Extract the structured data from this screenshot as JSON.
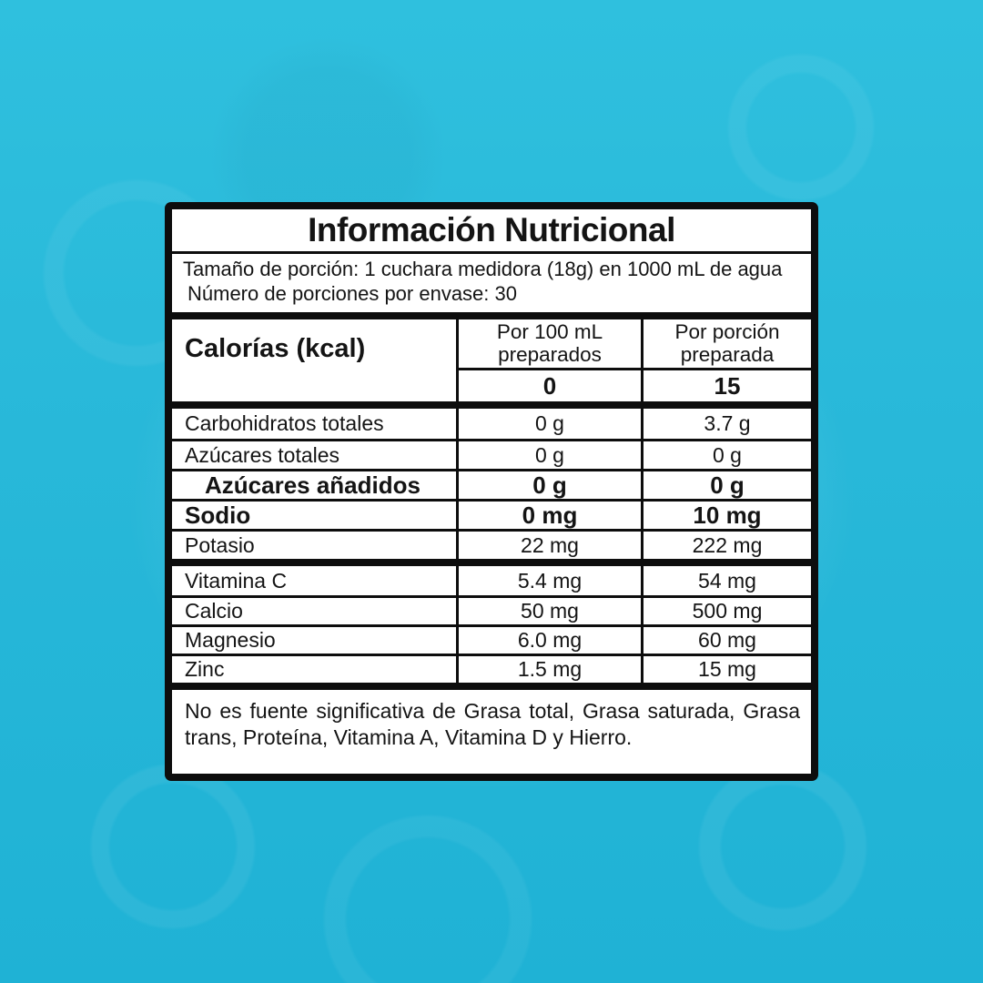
{
  "colors": {
    "background_base": "#28b9da",
    "background_glow": "#7adeef",
    "label_border": "#0d0d0d",
    "section_bg": "#ffffff",
    "text_color": "#141414"
  },
  "label": {
    "title": "Información Nutricional",
    "serving": {
      "line1": "Tamaño de porción: 1 cuchara medidora (18g) en 1000 mL de agua",
      "line2": "Número de porciones por envase: 30"
    },
    "calories": {
      "label": "Calorías (kcal)",
      "col_per100": {
        "header_line1": "Por 100 mL",
        "header_line2": "preparados",
        "value": "0"
      },
      "col_portion": {
        "header_line1": "Por porción",
        "header_line2": "preparada",
        "value": "15"
      }
    },
    "nutrients": [
      {
        "label": "Carbohidratos totales",
        "per100": "0 g",
        "portion": "3.7 g"
      },
      {
        "label": "Azúcares totales",
        "per100": "0 g",
        "portion": "0 g"
      },
      {
        "label": "Azúcares añadidos",
        "per100": "0 g",
        "portion": "0 g"
      },
      {
        "label": "Sodio",
        "per100": "0 mg",
        "portion": "10 mg"
      },
      {
        "label": "Potasio",
        "per100": "22 mg",
        "portion": "222 mg"
      }
    ],
    "minerals": [
      {
        "label": "Vitamina C",
        "per100": "5.4 mg",
        "portion": "54 mg"
      },
      {
        "label": "Calcio",
        "per100": "50 mg",
        "portion": "500 mg"
      },
      {
        "label": "Magnesio",
        "per100": "6.0 mg",
        "portion": "60 mg"
      },
      {
        "label": "Zinc",
        "per100": "1.5 mg",
        "portion": "15 mg"
      }
    ],
    "footnote": "No es fuente significativa de Grasa total, Grasa saturada, Grasa trans, Proteína, Vitamina A, Vitamina D y Hierro."
  }
}
